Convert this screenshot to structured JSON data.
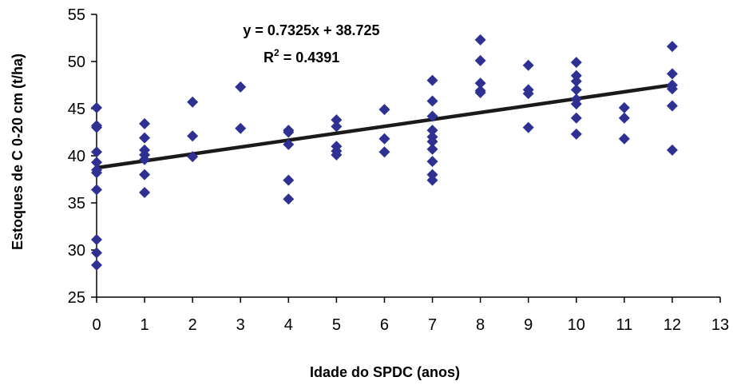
{
  "chart_data": {
    "type": "scatter",
    "title": "",
    "xlabel": "Idade do SPDC (anos)",
    "ylabel": "Estoques de C 0-20 cm (t/ha)",
    "xlim": [
      0,
      13
    ],
    "ylim": [
      25,
      55
    ],
    "x_ticks": [
      0,
      1,
      2,
      3,
      4,
      5,
      6,
      7,
      8,
      9,
      10,
      11,
      12,
      13
    ],
    "y_ticks": [
      25,
      30,
      35,
      40,
      45,
      50,
      55
    ],
    "grid": false,
    "legend": "none",
    "marker": "diamond",
    "colors": {
      "points": "#2E3192",
      "trendline": "#1a1a1a",
      "axis": "#000000"
    },
    "series": [
      {
        "points": [
          [
            0,
            45.1
          ],
          [
            0,
            43.2
          ],
          [
            0,
            43.0
          ],
          [
            0,
            40.4
          ],
          [
            0,
            39.3
          ],
          [
            0,
            38.5
          ],
          [
            0,
            38.2
          ],
          [
            0,
            36.4
          ],
          [
            0,
            31.1
          ],
          [
            0,
            29.7
          ],
          [
            0,
            28.4
          ],
          [
            1,
            43.4
          ],
          [
            1,
            41.9
          ],
          [
            1,
            40.6
          ],
          [
            1,
            40.1
          ],
          [
            1,
            39.6
          ],
          [
            1,
            38.0
          ],
          [
            1,
            36.1
          ],
          [
            2,
            45.7
          ],
          [
            2,
            42.1
          ],
          [
            2,
            39.9
          ],
          [
            3,
            47.3
          ],
          [
            3,
            42.9
          ],
          [
            4,
            42.7
          ],
          [
            4,
            42.5
          ],
          [
            4,
            41.2
          ],
          [
            4,
            37.4
          ],
          [
            4,
            35.4
          ],
          [
            5,
            43.8
          ],
          [
            5,
            43.1
          ],
          [
            5,
            41.0
          ],
          [
            5,
            40.5
          ],
          [
            5,
            40.1
          ],
          [
            6,
            44.9
          ],
          [
            6,
            41.8
          ],
          [
            6,
            40.4
          ],
          [
            7,
            48.0
          ],
          [
            7,
            45.8
          ],
          [
            7,
            44.2
          ],
          [
            7,
            42.7
          ],
          [
            7,
            42.0
          ],
          [
            7,
            41.5
          ],
          [
            7,
            40.7
          ],
          [
            7,
            39.4
          ],
          [
            7,
            38.0
          ],
          [
            7,
            37.4
          ],
          [
            8,
            52.3
          ],
          [
            8,
            50.1
          ],
          [
            8,
            47.7
          ],
          [
            8,
            46.9
          ],
          [
            8,
            46.7
          ],
          [
            9,
            49.6
          ],
          [
            9,
            47.0
          ],
          [
            9,
            46.6
          ],
          [
            9,
            43.0
          ],
          [
            10,
            49.9
          ],
          [
            10,
            48.5
          ],
          [
            10,
            47.9
          ],
          [
            10,
            47.0
          ],
          [
            10,
            46.0
          ],
          [
            10,
            45.5
          ],
          [
            10,
            44.0
          ],
          [
            10,
            42.3
          ],
          [
            11,
            45.1
          ],
          [
            11,
            44.0
          ],
          [
            11,
            41.8
          ],
          [
            12,
            51.6
          ],
          [
            12,
            48.7
          ],
          [
            12,
            47.5
          ],
          [
            12,
            47.1
          ],
          [
            12,
            45.3
          ],
          [
            12,
            40.6
          ]
        ]
      }
    ],
    "trendline": {
      "slope": 0.7325,
      "intercept": 38.725,
      "x_range": [
        0,
        12
      ],
      "equation": "y = 0.7325x + 38.725",
      "r2_prefix": "R",
      "r2_sup": "2",
      "r2_value": " = 0.4391"
    }
  }
}
